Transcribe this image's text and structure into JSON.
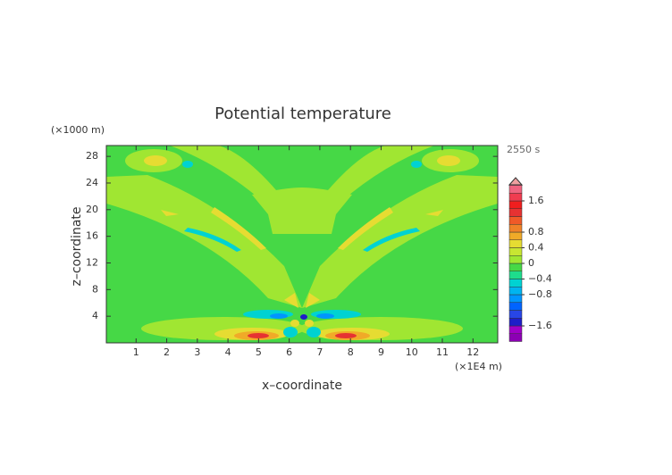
{
  "chart_data": {
    "type": "contour",
    "title": "Potential temperature",
    "time_label": "2550 s",
    "x_label": "x–coordinate",
    "y_label": "z–coordinate",
    "x_unit": "(×1E4 m)",
    "y_unit": "(×1000 m)",
    "xlim": [
      0,
      12.8
    ],
    "xticks": [
      1,
      2,
      3,
      4,
      5,
      6,
      7,
      8,
      9,
      10,
      11,
      12
    ],
    "ylim": [
      0,
      29.6
    ],
    "yticks": [
      4,
      8,
      12,
      16,
      20,
      24,
      28
    ],
    "colorbar": {
      "lim": [
        -2,
        2
      ],
      "ticks": [
        1.6,
        0.8,
        0.4,
        0,
        {
          "value": -0.4,
          "label": "−0.4"
        },
        {
          "value": -0.8,
          "label": "−0.8"
        },
        {
          "value": -1.6,
          "label": "−1.6"
        }
      ],
      "colors": [
        "#8c00b4",
        "#a000c8",
        "#1e1ec8",
        "#2846e6",
        "#0064ff",
        "#0096ff",
        "#00b4f0",
        "#00d2d2",
        "#1edc8c",
        "#46d846",
        "#a0e632",
        "#c8e632",
        "#e6dc32",
        "#f0aa28",
        "#f08228",
        "#f05a28",
        "#e63232",
        "#f01e1e",
        "#f03c50",
        "#f06480"
      ]
    }
  }
}
